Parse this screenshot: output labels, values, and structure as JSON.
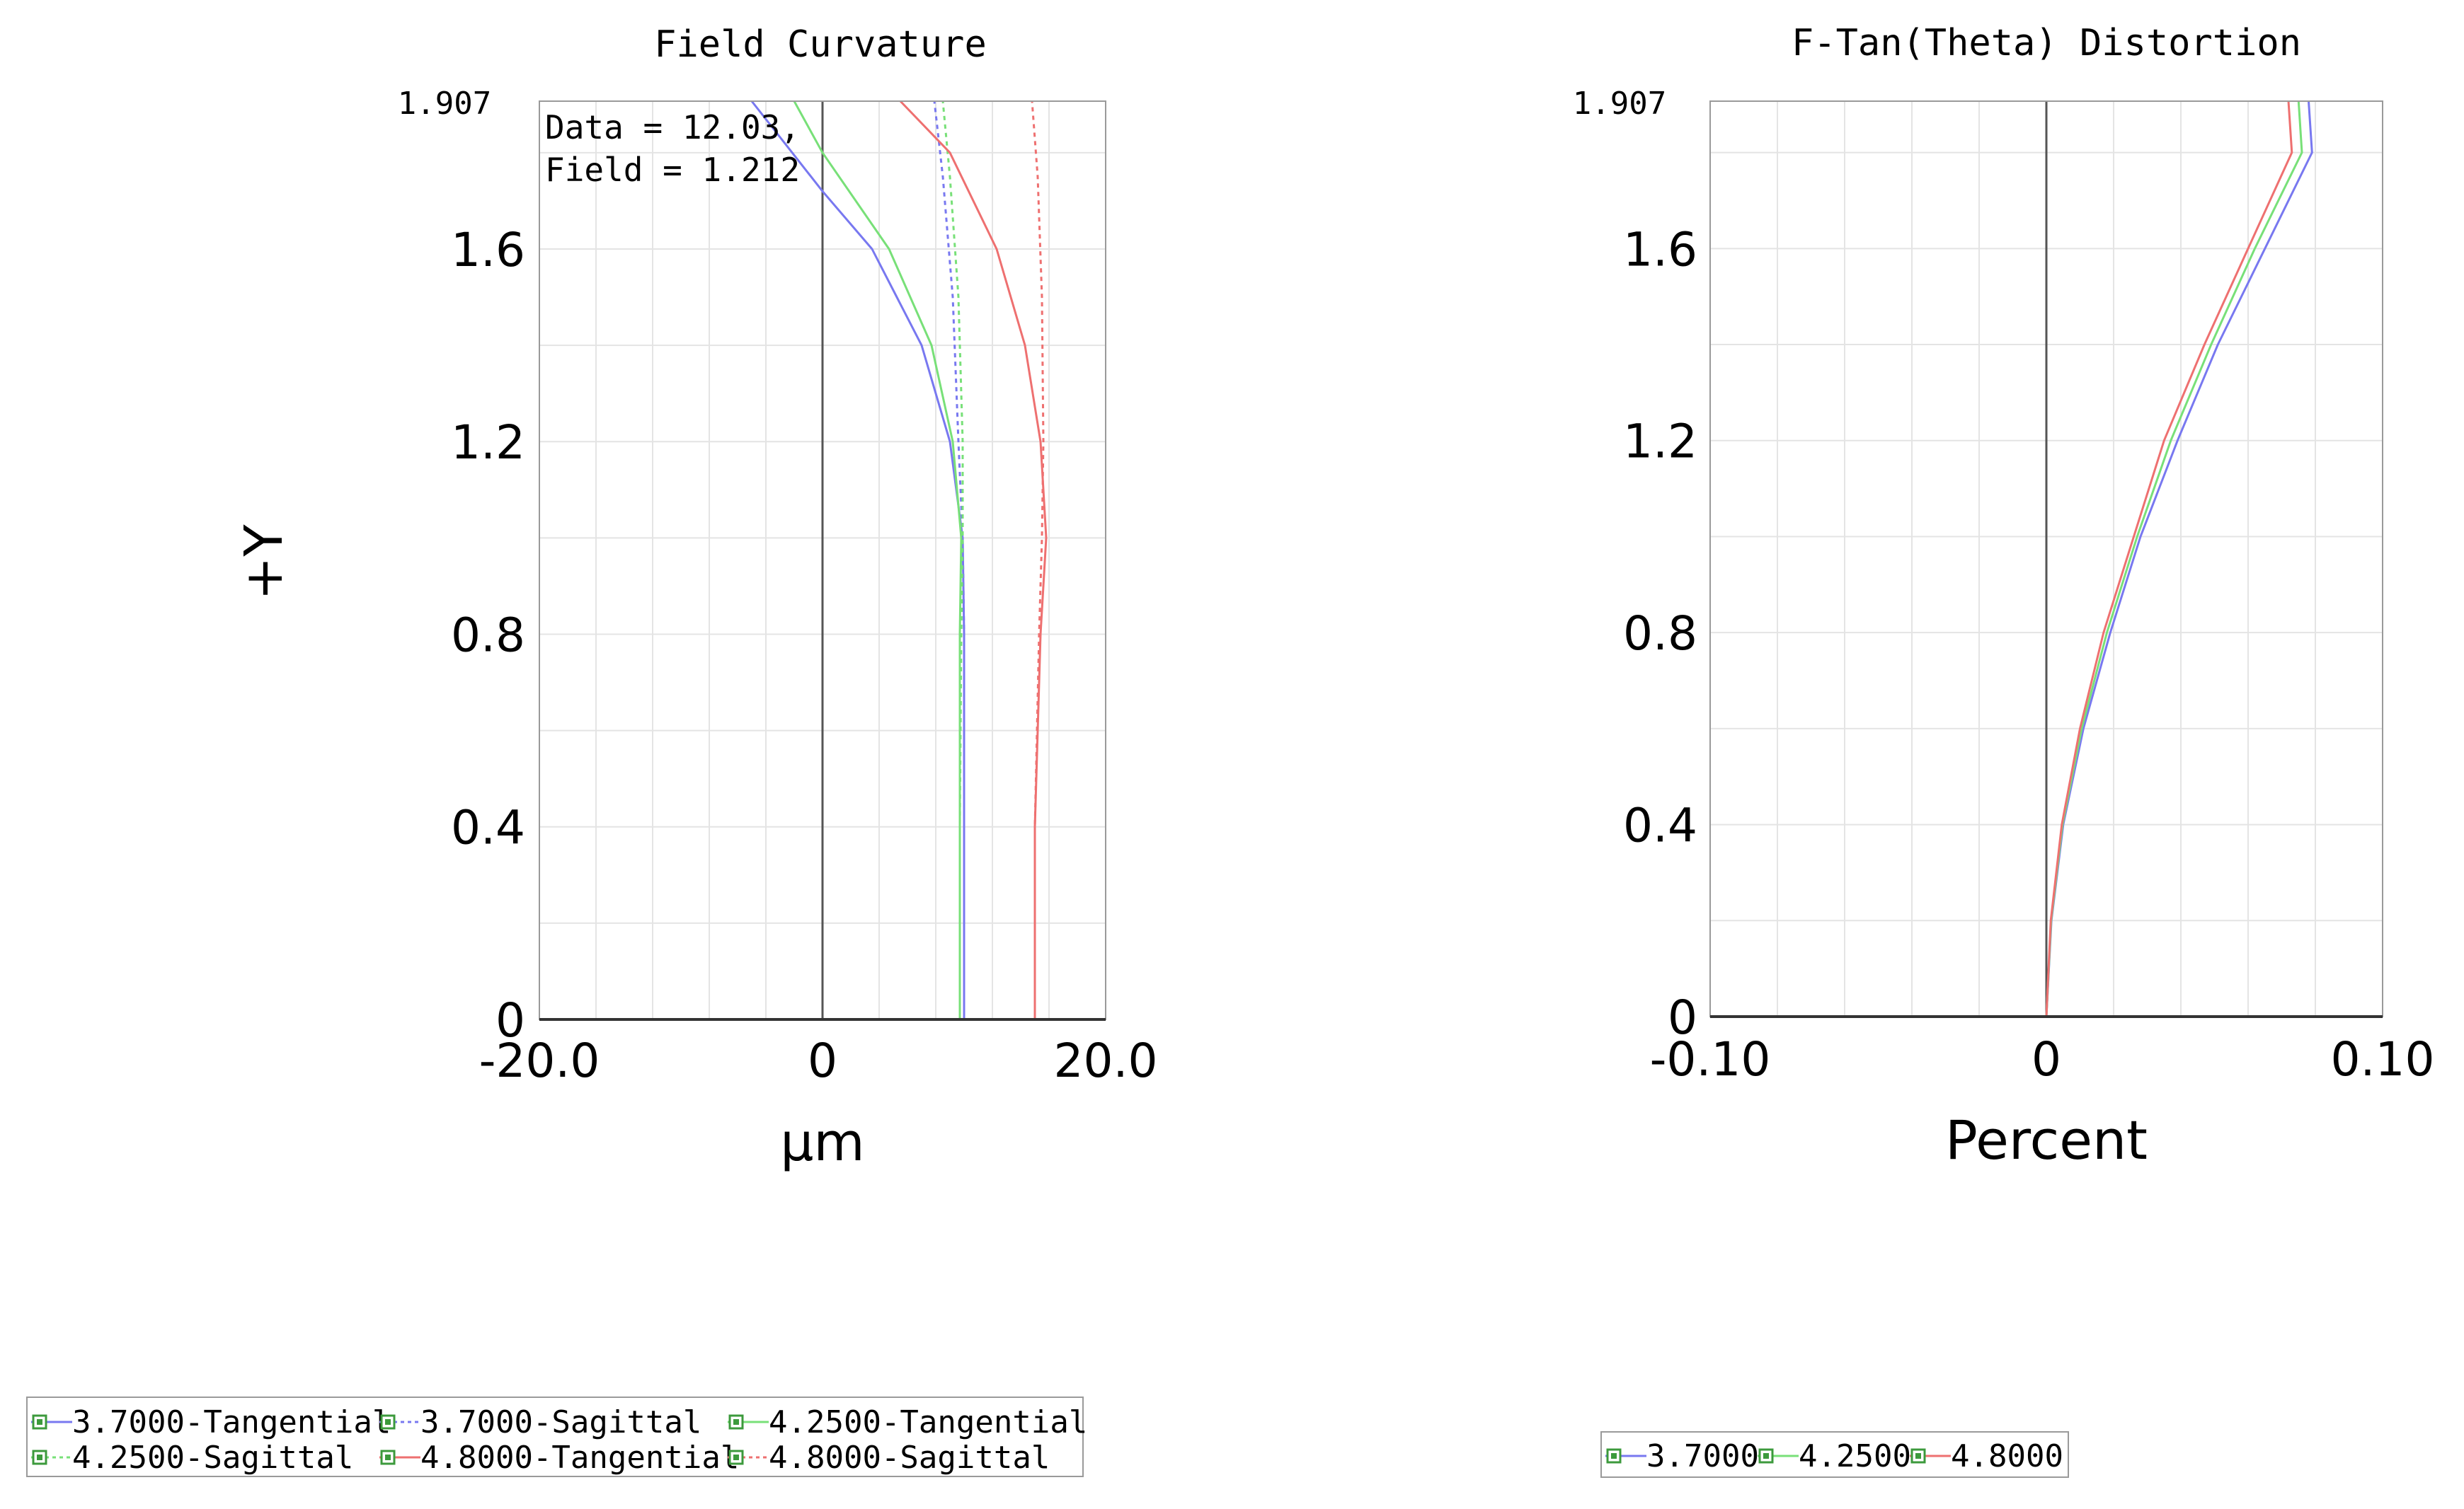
{
  "colors": {
    "blue": "#7878f0",
    "green": "#78e078",
    "red": "#ee7070",
    "axis": "#555555",
    "grid": "#e4e4e4",
    "checkbox_fill": "#3c9a3c"
  },
  "chart_data": [
    {
      "type": "line",
      "title": "Field Curvature",
      "xlabel": "µm",
      "ylabel": "+Y",
      "xlim": [
        -20.0,
        20.0
      ],
      "ylim": [
        0,
        1.907
      ],
      "x_ticks": [
        "-20.0",
        "0",
        "20.0"
      ],
      "y_ticks": [
        "0",
        "0.4",
        "0.8",
        "1.2",
        "1.6"
      ],
      "y_max_label": "1.907",
      "grid": true,
      "annotation": [
        "Data = 12.03,",
        "Field = 1.212"
      ],
      "series": [
        {
          "name": "3.7000-Tangential",
          "color": "blue",
          "dash": false,
          "points": [
            [
              10.0,
              0
            ],
            [
              10.0,
              0.4
            ],
            [
              10.0,
              0.8
            ],
            [
              9.9,
              1.0
            ],
            [
              9.0,
              1.2
            ],
            [
              7.0,
              1.4
            ],
            [
              3.5,
              1.6
            ],
            [
              0,
              1.72
            ],
            [
              -5.0,
              1.907
            ]
          ]
        },
        {
          "name": "3.7000-Sagittal",
          "color": "blue",
          "dash": true,
          "points": [
            [
              10.0,
              0
            ],
            [
              10.0,
              0.4
            ],
            [
              10.0,
              0.8
            ],
            [
              9.9,
              1.0
            ],
            [
              9.6,
              1.2
            ],
            [
              9.2,
              1.5
            ],
            [
              8.5,
              1.75
            ],
            [
              7.9,
              1.907
            ]
          ]
        },
        {
          "name": "4.2500-Tangential",
          "color": "green",
          "dash": false,
          "points": [
            [
              9.7,
              0
            ],
            [
              9.7,
              0.4
            ],
            [
              9.7,
              0.8
            ],
            [
              9.8,
              1.0
            ],
            [
              9.2,
              1.2
            ],
            [
              7.7,
              1.4
            ],
            [
              4.7,
              1.6
            ],
            [
              0,
              1.8
            ],
            [
              -2.0,
              1.907
            ]
          ]
        },
        {
          "name": "4.2500-Sagittal",
          "color": "green",
          "dash": true,
          "points": [
            [
              9.7,
              0
            ],
            [
              9.7,
              0.4
            ],
            [
              9.8,
              0.8
            ],
            [
              9.9,
              1.0
            ],
            [
              9.9,
              1.2
            ],
            [
              9.6,
              1.5
            ],
            [
              9.0,
              1.75
            ],
            [
              8.5,
              1.907
            ]
          ]
        },
        {
          "name": "4.8000-Tangential",
          "color": "red",
          "dash": false,
          "points": [
            [
              15.0,
              0
            ],
            [
              15.0,
              0.4
            ],
            [
              15.4,
              0.8
            ],
            [
              15.8,
              1.0
            ],
            [
              15.4,
              1.2
            ],
            [
              14.3,
              1.4
            ],
            [
              12.3,
              1.6
            ],
            [
              9.0,
              1.8
            ],
            [
              5.5,
              1.907
            ]
          ]
        },
        {
          "name": "4.8000-Sagittal",
          "color": "red",
          "dash": true,
          "points": [
            [
              15.0,
              0
            ],
            [
              15.0,
              0.4
            ],
            [
              15.3,
              0.8
            ],
            [
              15.5,
              1.0
            ],
            [
              15.6,
              1.2
            ],
            [
              15.5,
              1.5
            ],
            [
              15.2,
              1.75
            ],
            [
              14.8,
              1.907
            ]
          ]
        }
      ],
      "legend": {
        "placement": "bottom-left",
        "items": [
          "3.7000-Tangential",
          "3.7000-Sagittal",
          "4.2500-Tangential",
          "4.2500-Sagittal",
          "4.8000-Tangential",
          "4.8000-Sagittal"
        ]
      }
    },
    {
      "type": "line",
      "title": "F-Tan(Theta) Distortion",
      "xlabel": "Percent",
      "ylabel": "",
      "xlim": [
        -0.1,
        0.1
      ],
      "ylim": [
        0,
        1.907
      ],
      "x_ticks": [
        "-0.10",
        "0",
        "0.10"
      ],
      "y_ticks": [
        "0",
        "0.4",
        "0.8",
        "1.2",
        "1.6"
      ],
      "y_max_label": "1.907",
      "grid": true,
      "series": [
        {
          "name": "3.7000",
          "color": "blue",
          "dash": false,
          "points": [
            [
              0,
              0
            ],
            [
              0.0015,
              0.2
            ],
            [
              0.005,
              0.4
            ],
            [
              0.011,
              0.6
            ],
            [
              0.019,
              0.8
            ],
            [
              0.028,
              1.0
            ],
            [
              0.039,
              1.2
            ],
            [
              0.051,
              1.4
            ],
            [
              0.065,
              1.6
            ],
            [
              0.079,
              1.8
            ],
            [
              0.078,
              1.907
            ]
          ]
        },
        {
          "name": "4.2500",
          "color": "green",
          "dash": false,
          "points": [
            [
              0,
              0
            ],
            [
              0.0014,
              0.2
            ],
            [
              0.0048,
              0.4
            ],
            [
              0.0105,
              0.6
            ],
            [
              0.018,
              0.8
            ],
            [
              0.027,
              1.0
            ],
            [
              0.037,
              1.2
            ],
            [
              0.049,
              1.4
            ],
            [
              0.062,
              1.6
            ],
            [
              0.076,
              1.8
            ],
            [
              0.075,
              1.907
            ]
          ]
        },
        {
          "name": "4.8000",
          "color": "red",
          "dash": false,
          "points": [
            [
              0,
              0
            ],
            [
              0.0013,
              0.2
            ],
            [
              0.0046,
              0.4
            ],
            [
              0.01,
              0.6
            ],
            [
              0.017,
              0.8
            ],
            [
              0.026,
              1.0
            ],
            [
              0.035,
              1.2
            ],
            [
              0.047,
              1.4
            ],
            [
              0.06,
              1.6
            ],
            [
              0.073,
              1.8
            ],
            [
              0.072,
              1.907
            ]
          ]
        }
      ],
      "legend": {
        "placement": "bottom-center",
        "items": [
          "3.7000",
          "4.2500",
          "4.8000"
        ]
      }
    }
  ]
}
